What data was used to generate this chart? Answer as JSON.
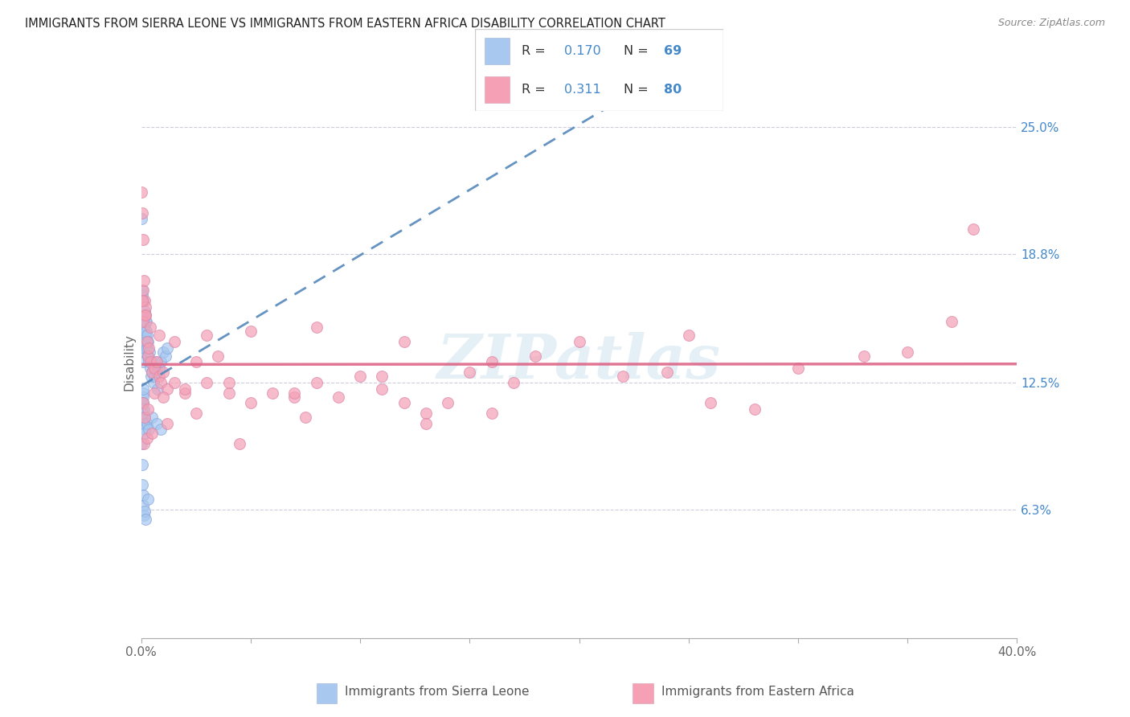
{
  "title": "IMMIGRANTS FROM SIERRA LEONE VS IMMIGRANTS FROM EASTERN AFRICA DISABILITY CORRELATION CHART",
  "source": "Source: ZipAtlas.com",
  "ylabel": "Disability",
  "right_ytick_labels": [
    "6.3%",
    "12.5%",
    "18.8%",
    "25.0%"
  ],
  "right_yticks": [
    6.3,
    12.5,
    18.8,
    25.0
  ],
  "xlim": [
    0.0,
    40.0
  ],
  "ylim": [
    0.0,
    27.0
  ],
  "color_blue": "#a8c8f0",
  "color_pink": "#f5a0b5",
  "color_blue_line": "#5588bb",
  "color_pink_line": "#dd6688",
  "color_text_blue": "#4488cc",
  "watermark": "ZIPatlas",
  "sierra_leone_x": [
    0.02,
    0.03,
    0.04,
    0.05,
    0.06,
    0.07,
    0.08,
    0.09,
    0.1,
    0.11,
    0.12,
    0.13,
    0.14,
    0.15,
    0.16,
    0.17,
    0.18,
    0.19,
    0.2,
    0.22,
    0.24,
    0.26,
    0.28,
    0.3,
    0.32,
    0.35,
    0.38,
    0.4,
    0.45,
    0.5,
    0.55,
    0.6,
    0.65,
    0.7,
    0.75,
    0.8,
    0.9,
    1.0,
    1.1,
    1.2,
    0.02,
    0.03,
    0.04,
    0.05,
    0.06,
    0.07,
    0.08,
    0.09,
    0.1,
    0.11,
    0.12,
    0.13,
    0.14,
    0.15,
    0.16,
    0.25,
    0.35,
    0.5,
    0.7,
    0.9,
    0.02,
    0.03,
    0.05,
    0.07,
    0.1,
    0.12,
    0.15,
    0.2,
    0.3
  ],
  "sierra_leone_y": [
    20.5,
    16.8,
    17.0,
    15.5,
    15.2,
    16.5,
    14.0,
    13.5,
    14.8,
    15.0,
    15.2,
    14.5,
    14.0,
    14.2,
    15.8,
    16.0,
    15.5,
    14.8,
    14.5,
    15.5,
    15.0,
    14.8,
    14.2,
    14.5,
    13.8,
    13.5,
    14.0,
    13.2,
    12.8,
    13.0,
    12.5,
    12.8,
    13.5,
    13.0,
    12.2,
    13.2,
    13.5,
    14.0,
    13.8,
    14.2,
    11.5,
    11.2,
    11.0,
    10.8,
    11.5,
    12.0,
    11.8,
    12.2,
    11.5,
    10.5,
    10.8,
    11.2,
    10.5,
    10.2,
    10.0,
    10.5,
    10.2,
    10.8,
    10.5,
    10.2,
    9.5,
    8.5,
    7.5,
    7.0,
    6.5,
    6.0,
    6.2,
    5.8,
    6.8
  ],
  "eastern_africa_x": [
    0.02,
    0.05,
    0.08,
    0.1,
    0.12,
    0.15,
    0.18,
    0.2,
    0.25,
    0.3,
    0.35,
    0.4,
    0.5,
    0.6,
    0.7,
    0.8,
    0.9,
    1.0,
    1.2,
    1.5,
    2.0,
    2.5,
    3.0,
    3.5,
    4.0,
    5.0,
    6.0,
    7.0,
    8.0,
    9.0,
    10.0,
    11.0,
    12.0,
    13.0,
    14.0,
    15.0,
    16.0,
    17.0,
    18.0,
    20.0,
    22.0,
    24.0,
    26.0,
    28.0,
    30.0,
    33.0,
    35.0,
    37.0,
    0.05,
    0.1,
    0.2,
    0.4,
    0.8,
    1.5,
    3.0,
    5.0,
    8.0,
    12.0,
    0.08,
    0.15,
    0.3,
    0.6,
    1.0,
    2.0,
    4.0,
    7.0,
    11.0,
    16.0,
    25.0,
    38.0,
    0.12,
    0.25,
    0.5,
    1.2,
    2.5,
    4.5,
    7.5,
    13.0
  ],
  "eastern_africa_y": [
    21.8,
    20.8,
    19.5,
    17.0,
    17.5,
    16.5,
    15.8,
    16.2,
    14.5,
    13.8,
    14.2,
    13.5,
    13.0,
    13.2,
    13.5,
    12.8,
    12.5,
    13.0,
    12.2,
    12.5,
    12.0,
    13.5,
    12.5,
    13.8,
    12.0,
    11.5,
    12.0,
    11.8,
    12.5,
    11.8,
    12.8,
    12.2,
    11.5,
    11.0,
    11.5,
    13.0,
    11.0,
    12.5,
    13.8,
    14.5,
    12.8,
    13.0,
    11.5,
    11.2,
    13.2,
    13.8,
    14.0,
    15.5,
    16.5,
    15.5,
    15.8,
    15.2,
    14.8,
    14.5,
    14.8,
    15.0,
    15.2,
    14.5,
    11.5,
    10.8,
    11.2,
    12.0,
    11.8,
    12.2,
    12.5,
    12.0,
    12.8,
    13.5,
    14.8,
    20.0,
    9.5,
    9.8,
    10.0,
    10.5,
    11.0,
    9.5,
    10.8,
    10.5
  ]
}
